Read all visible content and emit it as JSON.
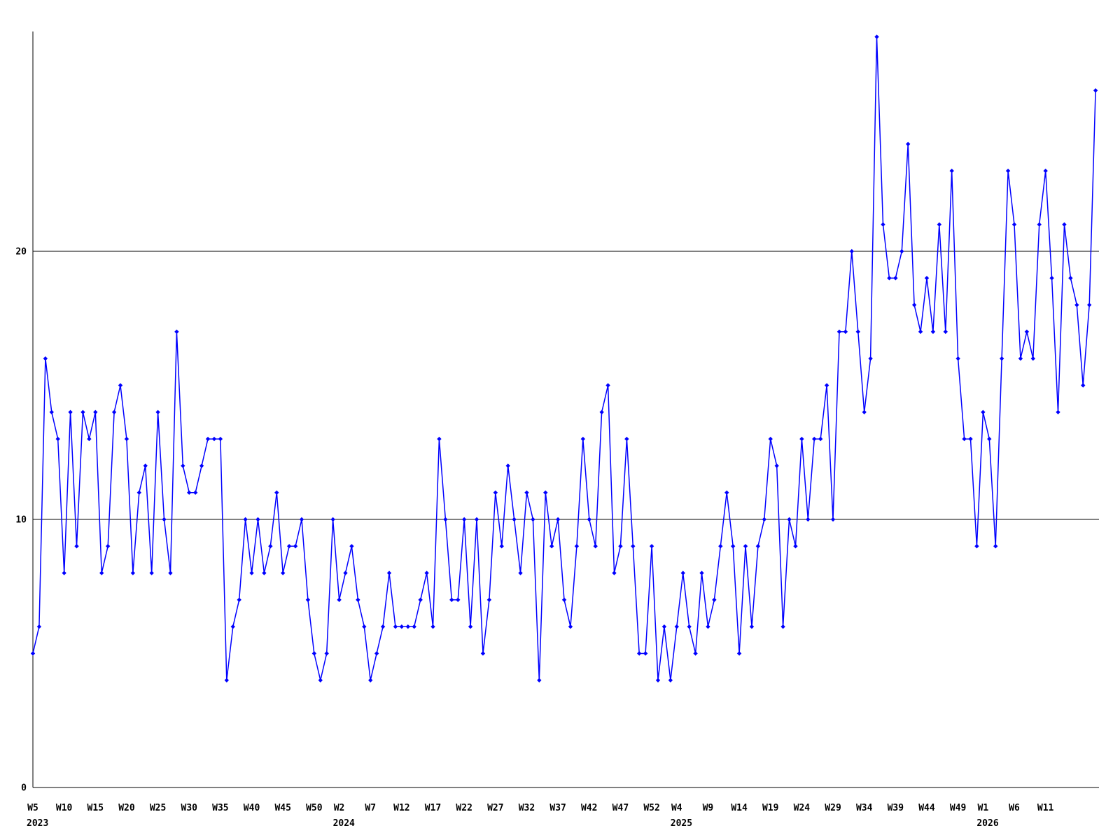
{
  "chart_data": {
    "type": "line",
    "title": "",
    "xlabel": "",
    "ylabel": "",
    "x_unit": "ISO week",
    "ylim": [
      0,
      29
    ],
    "grid": "horizontal gridlines at y=10 and y=20",
    "legend_position": "none",
    "line_color": "#0000ff",
    "axis_color": "#000000",
    "background_color": "#ffffff",
    "marker": "diamond",
    "y_ticks": [
      {
        "value": 0,
        "label": "0",
        "gridline": false
      },
      {
        "value": 10,
        "label": "10",
        "gridline": true
      },
      {
        "value": 20,
        "label": "20",
        "gridline": true
      }
    ],
    "years": [
      {
        "year": "2023",
        "first_week": 5,
        "values": [
          5,
          6,
          16,
          14,
          13,
          8,
          14,
          9,
          14,
          13,
          14,
          8,
          9,
          14,
          15,
          13,
          8,
          11,
          12,
          8,
          14,
          10,
          8,
          17,
          12,
          11,
          11,
          12,
          13,
          13,
          13,
          4,
          6,
          7,
          10,
          8,
          10,
          8,
          9,
          11,
          8,
          9,
          9,
          10,
          7,
          5,
          4,
          5
        ]
      },
      {
        "year": "2024",
        "first_week": 1,
        "values": [
          10,
          7,
          8,
          9,
          7,
          6,
          4,
          5,
          6,
          8,
          6,
          6,
          6,
          6,
          7,
          8,
          6,
          13,
          10,
          7,
          7,
          10,
          6,
          10,
          5,
          7,
          11,
          9,
          12,
          10,
          8,
          11,
          10,
          4,
          11,
          9,
          10,
          7,
          6,
          9,
          13,
          10,
          9,
          14,
          15,
          8,
          9,
          13,
          9,
          5,
          5,
          9
        ]
      },
      {
        "year": "2025",
        "first_week": 1,
        "values": [
          4,
          6,
          4,
          6,
          8,
          6,
          5,
          8,
          6,
          7,
          9,
          11,
          9,
          5,
          9,
          6,
          9,
          10,
          13,
          12,
          6,
          10,
          9,
          13,
          10,
          13,
          13,
          15,
          10,
          17,
          17,
          20,
          17,
          14,
          16,
          28,
          21,
          19,
          19,
          20,
          24,
          18,
          17,
          19,
          17,
          21,
          17,
          23,
          16,
          13,
          13,
          9
        ]
      },
      {
        "year": "2026",
        "first_week": 1,
        "values": [
          14,
          13,
          9,
          16,
          23,
          21,
          16,
          17,
          16,
          21,
          23,
          19,
          14,
          21,
          19,
          18,
          15,
          18,
          26
        ]
      }
    ],
    "x_ticks": [
      {
        "label": "W5",
        "index": 0
      },
      {
        "label": "W10",
        "index": 5
      },
      {
        "label": "W15",
        "index": 10
      },
      {
        "label": "W20",
        "index": 15
      },
      {
        "label": "W25",
        "index": 20
      },
      {
        "label": "W30",
        "index": 25
      },
      {
        "label": "W35",
        "index": 30
      },
      {
        "label": "W40",
        "index": 35
      },
      {
        "label": "W45",
        "index": 40
      },
      {
        "label": "W50",
        "index": 45
      },
      {
        "label": "W2",
        "index": 49
      },
      {
        "label": "W7",
        "index": 54
      },
      {
        "label": "W12",
        "index": 59
      },
      {
        "label": "W17",
        "index": 64
      },
      {
        "label": "W22",
        "index": 69
      },
      {
        "label": "W27",
        "index": 74
      },
      {
        "label": "W32",
        "index": 79
      },
      {
        "label": "W37",
        "index": 84
      },
      {
        "label": "W42",
        "index": 89
      },
      {
        "label": "W47",
        "index": 94
      },
      {
        "label": "W52",
        "index": 99
      },
      {
        "label": "W4",
        "index": 103
      },
      {
        "label": "W9",
        "index": 108
      },
      {
        "label": "W14",
        "index": 113
      },
      {
        "label": "W19",
        "index": 118
      },
      {
        "label": "W24",
        "index": 123
      },
      {
        "label": "W29",
        "index": 128
      },
      {
        "label": "W34",
        "index": 133
      },
      {
        "label": "W39",
        "index": 138
      },
      {
        "label": "W44",
        "index": 143
      },
      {
        "label": "W49",
        "index": 148
      },
      {
        "label": "W1",
        "index": 152
      },
      {
        "label": "W6",
        "index": 157
      },
      {
        "label": "W11",
        "index": 162
      }
    ],
    "year_labels": [
      {
        "text": "2023",
        "index": 0
      },
      {
        "text": "2024",
        "index": 49
      },
      {
        "text": "2025",
        "index": 103
      },
      {
        "text": "2026",
        "index": 152
      }
    ]
  }
}
